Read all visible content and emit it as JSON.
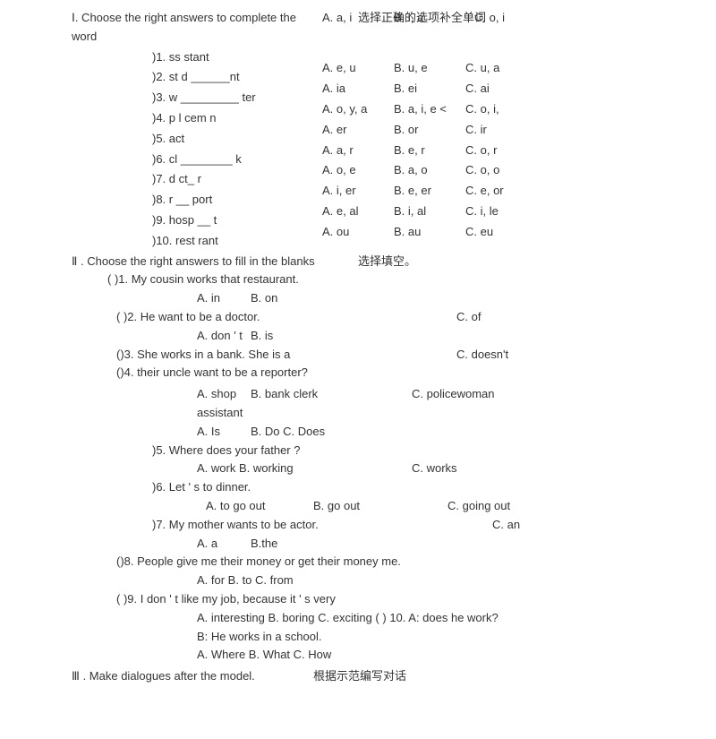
{
  "section1": {
    "title": "Ⅰ. Choose the right answers to complete the word",
    "headerOptions": [
      "A. a, i",
      "选择正确的选项补全单词",
      "B. i, a",
      "C. o, i"
    ],
    "headerOverlay": "选择正确的选项补全单词",
    "questions": [
      {
        "q": ")1. ss  stant",
        "opts": [
          "",
          "",
          ""
        ]
      },
      {
        "q": ")2. st  d ______nt",
        "opts": [
          "A. e, u",
          "B. u, e",
          "C. u, a"
        ]
      },
      {
        "q": ")3. w _________ ter",
        "opts": [
          "A. ia",
          "B. ei",
          "C. ai"
        ]
      },
      {
        "q": ")4. p  l  cem  n",
        "opts": [
          "A. o, y, a",
          "B. a, i, e  <",
          "C. o, i,"
        ]
      },
      {
        "q": ")5. act",
        "opts": [
          "A. er",
          "B. or",
          "C. ir"
        ]
      },
      {
        "q": ")6. cl ________ k",
        "opts": [
          "A. a, r",
          "B. e, r",
          "C. o, r"
        ]
      },
      {
        "q": ")7. d  ct_ r",
        "opts": [
          "A. o, e",
          "B. a, o",
          "C. o, o"
        ]
      },
      {
        "q": ")8. r __ port",
        "opts": [
          "A. i, er",
          "B. e, er",
          "C. e, or"
        ]
      },
      {
        "q": ")9. hosp __ t",
        "opts": [
          "A. e, al",
          "B. i, al",
          "C. i, le"
        ]
      },
      {
        "q": ")10. rest rant",
        "opts": [
          "A. ou",
          "B. au",
          "C. eu"
        ]
      }
    ]
  },
  "section2": {
    "title": "Ⅱ . Choose the right answers to fill in the blanks",
    "subtitle": "选择填空。",
    "items": {
      "q1": "(         )1. My cousin works  that restaurant.",
      "q1a": "A. in",
      "q1b": "B. on",
      "q1c": "C. of",
      "q2": "(        )2. He  want to be a doctor.",
      "q2a": "A. don ' t",
      "q2b": "B. is",
      "q2c": "C. doesn't",
      "q3": "()3.     She     works     in     a     bank.     She     is     a",
      "q4": "()4.  their uncle want to be a reporter?",
      "q4a": "A. shop assistant",
      "q4b": "B. bank clerk",
      "q4c": "C. policewoman",
      "q4a2": "A. Is",
      "q4b2": "B. Do C. Does",
      "q5": ")5. Where does your father                       ?",
      "q5a": "A. work B. working",
      "q5c": "C. works",
      "q6": ")6. Let ' s  to dinner.",
      "q6a": "A. to go out",
      "q6b": "B. go out",
      "q6c": "C. going out",
      "q7": ")7. My mother wants to be  actor.",
      "q7a": "A. a",
      "q7b": "B.the",
      "q7c": "C. an",
      "q8": "()8. People give me their money or get their money  me.",
      "q8a": "A. for B. to C. from",
      "q9": "(        )9. I don ' t like my job, because it ' s very",
      "q9a": "A. interesting B. boring C. exciting (         ) 10. A: does he work?",
      "q10b": "B: He works in a school.",
      "q10a": "A. Where B. What C. How"
    }
  },
  "section3": {
    "title": "Ⅲ . Make dialogues after the model.",
    "subtitle": "根据示范编写对话"
  }
}
